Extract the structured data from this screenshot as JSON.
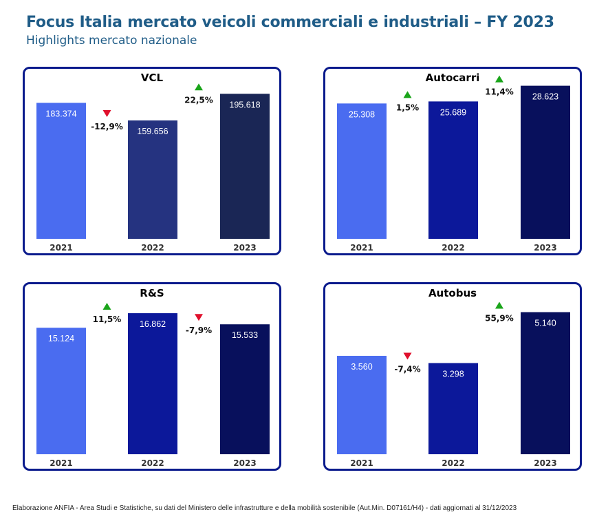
{
  "header": {
    "title": "Focus Italia mercato veicoli commerciali e industriali – FY 2023",
    "subtitle": "Highlights mercato nazionale"
  },
  "footer": {
    "source": "Elaborazione ANFIA - Area Studi e Statistiche, su dati del Ministero delle infrastrutture e della mobilità sostenibile (Aut.Min. D07161/H4) - dati aggiornati al 31/12/2023"
  },
  "colors": {
    "up": "#1aa51a",
    "down": "#e0102c",
    "panel_border": "#0a1a8c"
  },
  "chart_data": [
    {
      "type": "bar",
      "title": "VCL",
      "categories": [
        "2021",
        "2022",
        "2023"
      ],
      "values": [
        183374,
        159656,
        195618
      ],
      "value_labels": [
        "183.374",
        "159.656",
        "195.618"
      ],
      "changes": [
        {
          "label": "-12,9%",
          "direction": "down"
        },
        {
          "label": "22,5%",
          "direction": "up"
        }
      ],
      "bar_colors": [
        "#4a6cf0",
        "#253380",
        "#1a2655"
      ],
      "ylim": [
        0,
        220000
      ]
    },
    {
      "type": "bar",
      "title": "Autocarri",
      "categories": [
        "2021",
        "2022",
        "2023"
      ],
      "values": [
        25308,
        25689,
        28623
      ],
      "value_labels": [
        "25.308",
        "25.689",
        "28.623"
      ],
      "changes": [
        {
          "label": "1,5%",
          "direction": "up"
        },
        {
          "label": "11,4%",
          "direction": "up"
        }
      ],
      "bar_colors": [
        "#4a6cf0",
        "#0c189a",
        "#08105c"
      ],
      "ylim": [
        0,
        30500
      ]
    },
    {
      "type": "bar",
      "title": "R&S",
      "categories": [
        "2021",
        "2022",
        "2023"
      ],
      "values": [
        15124,
        16862,
        15533
      ],
      "value_labels": [
        "15.124",
        "16.862",
        "15.533"
      ],
      "changes": [
        {
          "label": "11,5%",
          "direction": "up"
        },
        {
          "label": "-7,9%",
          "direction": "down"
        }
      ],
      "bar_colors": [
        "#4a6cf0",
        "#0c189a",
        "#08105c"
      ],
      "ylim": [
        0,
        19500
      ]
    },
    {
      "type": "bar",
      "title": "Autobus",
      "categories": [
        "2021",
        "2022",
        "2023"
      ],
      "values": [
        3560,
        3298,
        5140
      ],
      "value_labels": [
        "3.560",
        "3.298",
        "5.140"
      ],
      "changes": [
        {
          "label": "-7,4%",
          "direction": "down"
        },
        {
          "label": "55,9%",
          "direction": "up"
        }
      ],
      "bar_colors": [
        "#4a6cf0",
        "#0c189a",
        "#08105c"
      ],
      "ylim": [
        0,
        5900
      ]
    }
  ]
}
